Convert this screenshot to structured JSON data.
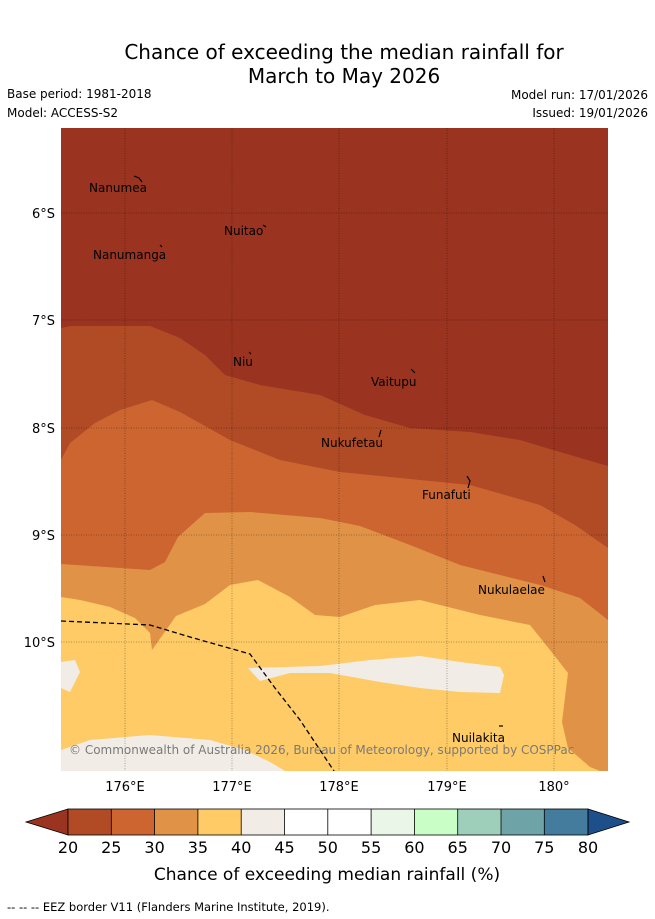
{
  "title_line1": "Chance of exceeding the median rainfall for",
  "title_line2": "March to May 2026",
  "meta": {
    "base_period": "Base period: 1981-2018",
    "model": "Model: ACCESS-S2",
    "model_run": "Model run: 17/01/2026",
    "issued": "Issued: 19/01/2026"
  },
  "map": {
    "lon_labels": [
      "176°E",
      "177°E",
      "178°E",
      "179°E",
      "180°"
    ],
    "lat_labels": [
      "6°S",
      "7°S",
      "8°S",
      "9°S",
      "10°S"
    ],
    "islands": [
      "Nanumea",
      "Nuitao",
      "Nanumanga",
      "Niu",
      "Vaitupu",
      "Nukufetau",
      "Funafuti",
      "Nukulaelae",
      "Nuilakita"
    ],
    "copyright": "© Commonwealth of Australia 2026, Bureau of Meteorology, supported by COSPPac",
    "colors": {
      "c20_25": "#9a3320",
      "c25_30": "#b04b26",
      "c30_35": "#cd6531",
      "c35_40": "#e09346",
      "c40_45": "#fecb66",
      "c45_50": "#f1ede6",
      "c50_55": "#ffffff",
      "c55_60": "#ffffff",
      "c60_65": "#eaf6e8",
      "c65_70": "#c9fec7",
      "c70_75": "#9dcfbb",
      "c75_80": "#6ea4a8",
      "c80_85": "#437c9d",
      "c85_plus": "#1d4f8b",
      "c_below": "#9a3320"
    }
  },
  "legend": {
    "ticks": [
      "20",
      "25",
      "30",
      "35",
      "40",
      "45",
      "50",
      "55",
      "60",
      "65",
      "70",
      "75",
      "80"
    ],
    "label": "Chance of exceeding median rainfall (%)"
  },
  "footer": "-- -- -- EEZ border V11 (Flanders Marine Institute, 2019)."
}
